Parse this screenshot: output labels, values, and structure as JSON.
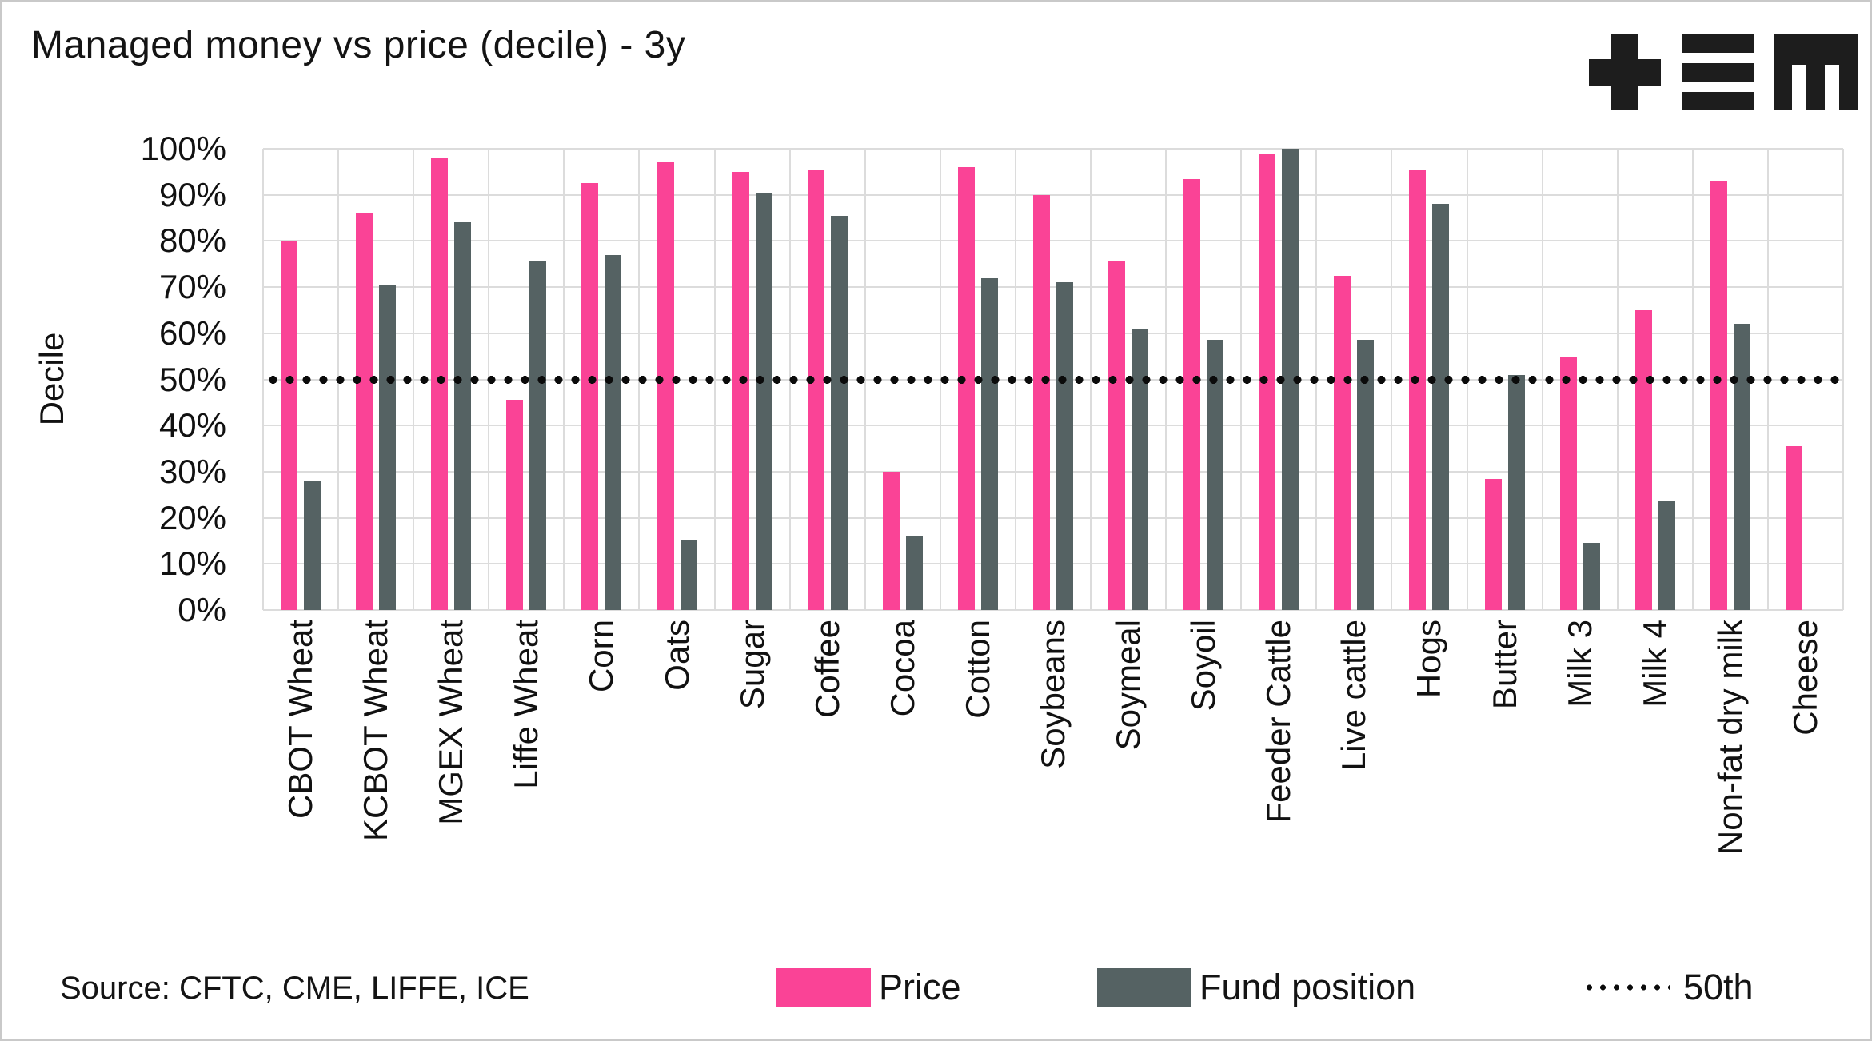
{
  "title": "Managed money vs price (decile) - 3y",
  "logo_name": "plus-equals-m-logo",
  "chart_data": {
    "type": "bar",
    "title": "Managed money vs price (decile) - 3y",
    "xlabel": "",
    "ylabel": "Decile",
    "ylim": [
      0,
      100
    ],
    "y_ticks": [
      "100%",
      "90%",
      "80%",
      "70%",
      "60%",
      "50%",
      "40%",
      "30%",
      "20%",
      "10%",
      "0%"
    ],
    "grid": true,
    "legend_position": "bottom",
    "reference_line": {
      "label": "50th",
      "value": 50,
      "style": "dotted",
      "color": "#0b0b0b"
    },
    "categories": [
      "CBOT Wheat",
      "KCBOT Wheat",
      "MGEX Wheat",
      "Liffe Wheat",
      "Corn",
      "Oats",
      "Sugar",
      "Coffee",
      "Cocoa",
      "Cotton",
      "Soybeans",
      "Soymeal",
      "Soyoil",
      "Feeder Cattle",
      "Live cattle",
      "Hogs",
      "Butter",
      "Milk 3",
      "Milk 4",
      "Non-fat dry milk",
      "Cheese"
    ],
    "series": [
      {
        "name": "Price",
        "color": "#fa4396",
        "values": [
          80,
          86,
          98,
          45.5,
          92.5,
          97,
          95,
          95.5,
          30,
          96,
          90,
          75.5,
          93.5,
          99,
          72.5,
          95.5,
          28.5,
          55,
          65,
          93,
          35.5
        ]
      },
      {
        "name": "Fund position",
        "color": "#556263",
        "values": [
          28,
          70.5,
          84,
          75.5,
          77,
          15,
          90.5,
          85.5,
          16,
          72,
          71,
          61,
          58.5,
          100,
          58.5,
          88,
          51,
          14.5,
          23.5,
          62,
          null
        ]
      }
    ]
  },
  "footer": {
    "source": "Source: CFTC, CME, LIFFE, ICE",
    "legend": [
      {
        "label": "Price",
        "swatch": "pink"
      },
      {
        "label": "Fund position",
        "swatch": "gray"
      },
      {
        "label": "50th",
        "swatch": "dotted"
      }
    ]
  },
  "colors": {
    "price": "#fa4396",
    "fund_position": "#556263",
    "gridline": "#dcdcdc",
    "dotted_line": "#0b0b0b",
    "text": "#141414",
    "frame_border": "#c9c9c9",
    "background": "#ffffff"
  }
}
